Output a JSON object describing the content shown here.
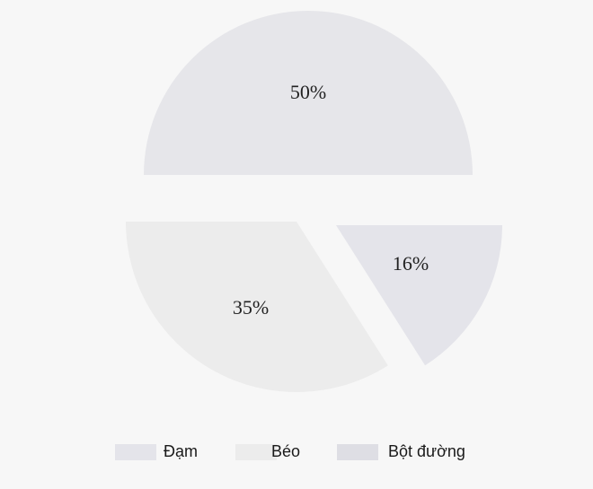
{
  "chart_data": {
    "type": "pie",
    "title": "",
    "exploded": true,
    "legend_position": "bottom",
    "slices": [
      {
        "name": "Bột đường",
        "value": 50,
        "label": "50%",
        "color": "#e6e6ea"
      },
      {
        "name": "Đạm",
        "value": 16,
        "label": "16%",
        "color": "#e4e4ea"
      },
      {
        "name": "Béo",
        "value": 35,
        "label": "35%",
        "color": "#ececec"
      }
    ],
    "legend": [
      {
        "name": "Đạm",
        "color": "#e4e4ea"
      },
      {
        "name": "Béo",
        "color": "#ececec"
      },
      {
        "name": "Bột đường",
        "color": "#dedee4"
      }
    ]
  }
}
